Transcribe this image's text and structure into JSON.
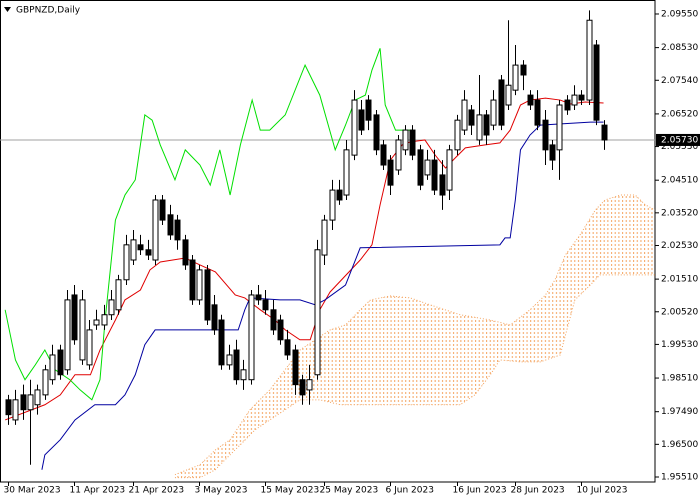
{
  "chart_data": {
    "type": "candlestick",
    "title": "GBPNZD,Daily",
    "categories": [
      "30 Mar 2023",
      null,
      null,
      null,
      null,
      null,
      null,
      null,
      null,
      "11 Apr 2023",
      null,
      null,
      null,
      null,
      null,
      null,
      null,
      "21 Apr 2023",
      null,
      null,
      null,
      null,
      null,
      null,
      null,
      null,
      "3 May 2023",
      null,
      null,
      null,
      null,
      null,
      null,
      null,
      null,
      "15 May 2023",
      null,
      null,
      null,
      null,
      null,
      null,
      null,
      "25 May 2023",
      null,
      null,
      null,
      null,
      null,
      null,
      null,
      null,
      "6 Jun 2023",
      null,
      null,
      null,
      null,
      null,
      null,
      null,
      null,
      "16 Jun 2023",
      null,
      null,
      null,
      null,
      null,
      null,
      null,
      "28 Jun 2023",
      null,
      null,
      null,
      null,
      null,
      null,
      null,
      null,
      "10 Jul 2023",
      null,
      null,
      null
    ],
    "open": [
      1.9785,
      1.9724,
      1.98,
      1.9755,
      1.977,
      1.98,
      1.9846,
      1.9936,
      1.9876,
      2.0103,
      1.9906,
      1.9891,
      2.0012,
      2.0012,
      2.0043,
      2.0058,
      2.0149,
      2.0209,
      2.0255,
      2.024,
      2.0209,
      2.0391,
      2.0346,
      2.033,
      2.027,
      2.0209,
      2.0088,
      2.0179,
      2.0073,
      2.0027,
      1.9891,
      1.9936,
      1.9846,
      1.9846,
      2.0103,
      2.0088,
      2.0058,
      2.0027,
      1.9967,
      1.9936,
      1.9846,
      1.9815,
      1.9861,
      2.0224,
      2.033,
      2.0421,
      2.0406,
      2.0527,
      2.0664,
      2.0694,
      2.0649,
      2.0558,
      2.0512,
      2.0482,
      2.0543,
      2.0603,
      2.0543,
      2.0467,
      2.0512,
      2.0467,
      2.0421,
      2.0543,
      2.0603,
      2.0664,
      2.0573,
      2.0649,
      2.0618,
      2.0755,
      2.0679,
      2.0724,
      2.08,
      2.0709,
      2.0694,
      2.0633,
      2.0558,
      2.0543,
      2.0694,
      2.0679,
      2.0709,
      2.0694,
      2.0861,
      2.0618
    ],
    "high": [
      1.98,
      1.9815,
      1.9831,
      1.9846,
      1.9831,
      1.9891,
      1.9952,
      1.9952,
      2.0118,
      2.0133,
      2.0118,
      2.0027,
      2.0058,
      2.0073,
      2.0118,
      2.0164,
      2.0285,
      2.03,
      2.0285,
      2.027,
      2.0406,
      2.0406,
      2.0376,
      2.0346,
      2.0285,
      2.0224,
      2.0194,
      2.0194,
      2.0103,
      2.0043,
      1.9952,
      1.9967,
      1.9906,
      2.0118,
      2.0133,
      2.0118,
      2.0088,
      2.0043,
      1.9997,
      1.9952,
      1.9861,
      1.9891,
      2.027,
      2.0346,
      2.0452,
      2.0452,
      2.0573,
      2.0724,
      2.0694,
      2.0709,
      2.0664,
      2.0573,
      2.0527,
      2.0588,
      2.0618,
      2.0618,
      2.0558,
      2.0543,
      2.0543,
      2.0512,
      2.0558,
      2.0649,
      2.0724,
      2.0679,
      2.077,
      2.0664,
      2.0724,
      2.077,
      2.0936,
      2.0861,
      2.0815,
      2.0724,
      2.0724,
      2.0664,
      2.0573,
      2.0694,
      2.0709,
      2.0739,
      2.0724,
      2.0966,
      2.0876,
      2.0633
    ],
    "low": [
      1.9709,
      1.9709,
      1.9724,
      1.9588,
      1.974,
      1.9785,
      1.9831,
      1.9846,
      1.9861,
      1.9952,
      1.9891,
      1.9876,
      1.9997,
      1.9997,
      2.0027,
      2.0043,
      2.0133,
      2.0194,
      2.0224,
      2.0209,
      2.0194,
      2.0315,
      2.027,
      2.024,
      2.0179,
      2.0073,
      2.0073,
      2.0012,
      1.9982,
      1.9876,
      1.9876,
      1.9831,
      1.9815,
      1.9831,
      2.0073,
      2.0043,
      1.9982,
      1.9952,
      1.9906,
      1.98,
      1.977,
      1.977,
      1.9846,
      2.0194,
      2.03,
      2.0376,
      2.0391,
      2.0512,
      2.0588,
      2.0603,
      2.0527,
      2.0482,
      2.0406,
      2.0467,
      2.0527,
      2.0512,
      2.0421,
      2.0452,
      2.0406,
      2.0361,
      2.0391,
      2.0527,
      2.0588,
      2.0588,
      2.0558,
      2.0558,
      2.0603,
      2.0603,
      2.0664,
      2.0709,
      2.0724,
      2.0664,
      2.0603,
      2.0497,
      2.0482,
      2.0452,
      2.0649,
      2.0664,
      2.0679,
      2.0679,
      2.0618,
      2.0543
    ],
    "close": [
      1.974,
      1.9785,
      1.9755,
      1.98,
      1.9815,
      1.9876,
      1.9921,
      1.9861,
      2.0088,
      1.9967,
      2.0088,
      1.9997,
      2.0027,
      2.0043,
      2.0088,
      2.0149,
      2.0255,
      2.027,
      2.024,
      2.0224,
      2.0391,
      2.033,
      2.0285,
      2.027,
      2.0194,
      2.0088,
      2.0179,
      2.0027,
      1.9997,
      1.9891,
      1.9921,
      1.9846,
      1.9876,
      2.0103,
      2.0088,
      2.0058,
      1.9997,
      1.9967,
      1.9921,
      1.9831,
      1.98,
      1.9846,
      2.024,
      2.033,
      2.0421,
      2.0391,
      2.0543,
      2.0694,
      2.0603,
      2.0633,
      2.0543,
      2.0497,
      2.0436,
      2.0573,
      2.0603,
      2.0527,
      2.0436,
      2.0512,
      2.0421,
      2.0406,
      2.0543,
      2.0633,
      2.0694,
      2.0618,
      2.0649,
      2.0588,
      2.0694,
      2.0618,
      2.0739,
      2.08,
      2.077,
      2.0679,
      2.0618,
      2.0543,
      2.0512,
      2.0679,
      2.0664,
      2.0709,
      2.0694,
      2.0936,
      2.0633,
      2.0573
    ],
    "up_color": "#ffffff",
    "down_color": "#000000",
    "lines": [
      {
        "color": "#e00000",
        "x": [
          -0.4,
          5,
          7.1,
          9.1,
          11.2,
          12.5,
          14.6,
          15.9,
          18,
          19.3,
          20.7,
          24.1,
          26.1,
          28.2,
          30.9,
          32.2,
          34.3,
          36.3,
          37.7,
          39.7,
          41.1,
          42.4,
          43.8,
          47.9,
          49.5,
          50.6,
          52,
          53.6,
          54.7,
          56.7,
          58.1,
          59.5,
          60.8,
          62.2,
          64.9,
          66.9,
          68.3,
          69.7,
          71,
          73.1,
          75.1,
          76.5,
          78.5,
          81
        ],
        "values": [
          1.9724,
          1.977,
          1.98,
          1.9861,
          1.9861,
          1.9936,
          2.0027,
          2.0088,
          2.0118,
          2.0179,
          2.0203,
          2.0215,
          2.0194,
          2.0173,
          2.0103,
          2.0094,
          2.0058,
          2.0027,
          1.9997,
          1.9967,
          1.9967,
          2.0058,
          2.0112,
          2.0209,
          2.0255,
          2.0376,
          2.0512,
          2.0558,
          2.0567,
          2.0573,
          2.0527,
          2.0488,
          2.0518,
          2.0549,
          2.0558,
          2.0564,
          2.0603,
          2.0679,
          2.0694,
          2.07,
          2.0694,
          2.0682,
          2.0688,
          2.0685
        ]
      },
      {
        "color": "#0000a0",
        "x": [
          4.6,
          5,
          7.1,
          9.1,
          11.8,
          14.6,
          15.9,
          17.3,
          18.6,
          20,
          22.7,
          31.3,
          32.2,
          32.9,
          37,
          39.7,
          41.8,
          43.1,
          45.9,
          47.9,
          66.9,
          67.6,
          68.3,
          69,
          69.7,
          71,
          72.4,
          79.2,
          81
        ],
        "values": [
          1.9573,
          1.9618,
          1.9664,
          1.9724,
          1.977,
          1.977,
          1.98,
          1.9861,
          1.9952,
          1.9997,
          1.9997,
          1.9997,
          2.0058,
          2.0094,
          2.0088,
          2.0088,
          2.0073,
          2.0088,
          2.0133,
          2.0246,
          2.0255,
          2.0276,
          2.0276,
          2.0391,
          2.0543,
          2.0588,
          2.0618,
          2.0627,
          2.0627
        ]
      },
      {
        "color": "#00e000",
        "x": [
          -0.4,
          1,
          2.3,
          3.7,
          5,
          6.4,
          8.4,
          9.8,
          11.4,
          12.5,
          13.2,
          14.6,
          15.9,
          17.3,
          18.6,
          19.6,
          20.7,
          22.7,
          24.1,
          26.1,
          27.5,
          28.8,
          30.2,
          31.6,
          33.2,
          34.3,
          35.6,
          37.7,
          40.4,
          42.4,
          44.5,
          45.9,
          47.2,
          48.6,
          49.5,
          50.6,
          51.3,
          52.7,
          55
        ],
        "values": [
          2.0058,
          1.9906,
          1.9846,
          1.9891,
          1.9936,
          1.9876,
          1.9846,
          1.9815,
          1.9785,
          1.9846,
          2.0027,
          2.033,
          2.0406,
          2.0452,
          2.0649,
          2.0633,
          2.0558,
          2.0452,
          2.0543,
          2.0497,
          2.0436,
          2.0543,
          2.0406,
          2.0558,
          2.0694,
          2.0603,
          2.0603,
          2.0649,
          2.08,
          2.0709,
          2.0543,
          2.0618,
          2.0694,
          2.0709,
          2.0785,
          2.0851,
          2.0679,
          2.0603,
          2.0603
        ]
      }
    ],
    "cloud": {
      "color": "#f4a460",
      "upper": {
        "x": [
          22.7,
          26.1,
          28.2,
          30.2,
          32.9,
          35.6,
          39.7,
          43.8,
          45.9,
          47.9,
          49.3,
          52,
          54.7,
          57.4,
          61.5,
          65.6,
          68.3,
          71,
          73.1,
          74.4,
          75.8,
          77.8,
          79.9,
          81.2,
          83.3,
          85.3,
          86.7,
          88
        ],
        "values": [
          1.9558,
          1.9588,
          1.9633,
          1.9664,
          1.9755,
          1.9815,
          1.9936,
          1.9997,
          2.0012,
          2.0058,
          2.0088,
          2.01,
          2.0094,
          2.0073,
          2.0043,
          2.0027,
          2.0012,
          2.0058,
          2.0103,
          2.0149,
          2.0224,
          2.0285,
          2.0361,
          2.0391,
          2.0406,
          2.0406,
          2.0376,
          2.0361
        ]
      },
      "lower": {
        "x": [
          22.7,
          26.1,
          28.2,
          29.5,
          31.6,
          33.6,
          35.6,
          37.7,
          39.7,
          42.4,
          45.2,
          61.5,
          63.5,
          65.6,
          66.9,
          69.7,
          72.4,
          75.1,
          77.1,
          79.2,
          80.5,
          88
        ],
        "values": [
          1.9549,
          1.9549,
          1.9573,
          1.9603,
          1.9649,
          1.9694,
          1.9724,
          1.9755,
          1.9785,
          1.9785,
          1.977,
          1.977,
          1.98,
          1.9861,
          1.9906,
          1.99,
          1.99,
          1.9921,
          2.0088,
          2.0133,
          2.0164,
          2.0164
        ]
      }
    },
    "current_price": {
      "value": 2.0573,
      "label": "2.05730"
    },
    "xlim": [
      -1.1,
      88
    ],
    "ylim": [
      1.95358,
      2.09974
    ],
    "yticks": [
      {
        "value": 2.0955,
        "label": "2.09550"
      },
      {
        "value": 2.0853,
        "label": "2.08530"
      },
      {
        "value": 2.0754,
        "label": "2.07540"
      },
      {
        "value": 2.0652,
        "label": "2.06520"
      },
      {
        "value": 2.0553,
        "label": "2.05530"
      },
      {
        "value": 2.0451,
        "label": "2.04510"
      },
      {
        "value": 2.0352,
        "label": "2.03520"
      },
      {
        "value": 2.0253,
        "label": "2.02530"
      },
      {
        "value": 2.0151,
        "label": "2.01510"
      },
      {
        "value": 2.0052,
        "label": "2.00520"
      },
      {
        "value": 1.9953,
        "label": "1.99530"
      },
      {
        "value": 1.9851,
        "label": "1.98510"
      },
      {
        "value": 1.9749,
        "label": "1.97490"
      },
      {
        "value": 1.965,
        "label": "1.96500"
      },
      {
        "value": 1.9551,
        "label": "1.95510"
      }
    ]
  }
}
